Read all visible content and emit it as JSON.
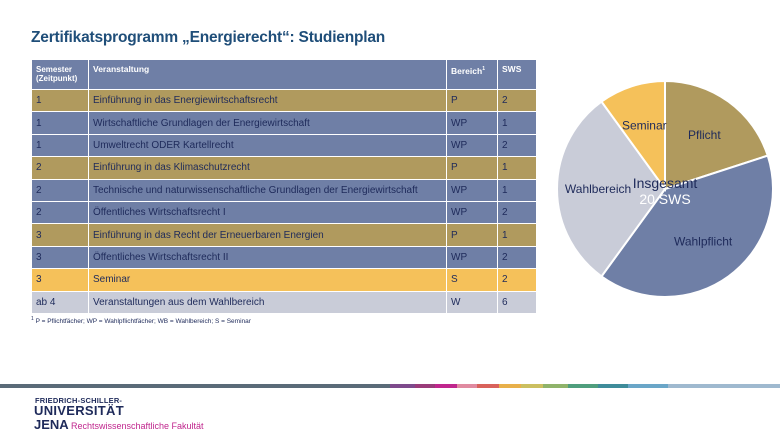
{
  "title": "Zertifikatsprogramm „Energierecht“: Studienplan",
  "table": {
    "headers": {
      "semester": "Semester (Zeitpunkt)",
      "veranstaltung": "Veranstaltung",
      "bereich": "Bereich",
      "bereich_sup": "1",
      "sws": "SWS"
    },
    "rows": [
      {
        "semester": "1",
        "veranstaltung": "Einführung in das Energiewirtschaftsrecht",
        "bereich": "P",
        "sws": "2"
      },
      {
        "semester": "1",
        "veranstaltung": "Wirtschaftliche Grundlagen der Energiewirtschaft",
        "bereich": "WP",
        "sws": "1"
      },
      {
        "semester": "1",
        "veranstaltung": "Umweltrecht ODER Kartellrecht",
        "bereich": "WP",
        "sws": "2"
      },
      {
        "semester": "2",
        "veranstaltung": "Einführung in das Klimaschutzrecht",
        "bereich": "P",
        "sws": "1"
      },
      {
        "semester": "2",
        "veranstaltung": "Technische und naturwissenschaftliche Grundlagen der Energiewirtschaft",
        "bereich": "WP",
        "sws": "1"
      },
      {
        "semester": "2",
        "veranstaltung": "Öffentliches Wirtschaftsrecht I",
        "bereich": "WP",
        "sws": "2"
      },
      {
        "semester": "3",
        "veranstaltung": "Einführung in das Recht der Erneuerbaren Energien",
        "bereich": "P",
        "sws": "1"
      },
      {
        "semester": "3",
        "veranstaltung": "Öffentliches Wirtschaftsrecht II",
        "bereich": "WP",
        "sws": "2"
      },
      {
        "semester": "3",
        "veranstaltung": "Seminar",
        "bereich": "S",
        "sws": "2"
      },
      {
        "semester": "ab 4",
        "veranstaltung": "Veranstaltungen aus dem Wahlbereich",
        "bereich": "W",
        "sws": "6"
      }
    ]
  },
  "footnote": {
    "marker": "1",
    "text": "P = Pflichtfächer; WP = Wahlpflichtfächer; WB = Wahlbereich; S = Seminar"
  },
  "chart_data": {
    "type": "pie",
    "title": "",
    "center_label_line1": "Insgesamt",
    "center_label_line2": "20 SWS",
    "slices": [
      {
        "label": "Pflicht",
        "value": 4,
        "color": "#b09a5e"
      },
      {
        "label": "Wahlpflicht",
        "value": 8,
        "color": "#6f7fa6"
      },
      {
        "label": "Wahlbereich",
        "value": 6,
        "color": "#c9ccd8"
      },
      {
        "label": "Seminar",
        "value": 2,
        "color": "#f5c15a"
      }
    ],
    "total": 20
  },
  "colors": {
    "pflicht": "#b09a5e",
    "wahlpflicht": "#6f7fa6",
    "seminar": "#f5c15a",
    "wahlbereich": "#c9ccd8",
    "title": "#1f4e79",
    "accent": "#c0268d"
  },
  "footer": {
    "logo_line1": "FRIEDRICH-SCHILLER-",
    "logo_line2": "UNIVERSITÄT",
    "logo_line3": "JENA",
    "faculty": "Rechtswissenschaftliche Fakultät"
  }
}
